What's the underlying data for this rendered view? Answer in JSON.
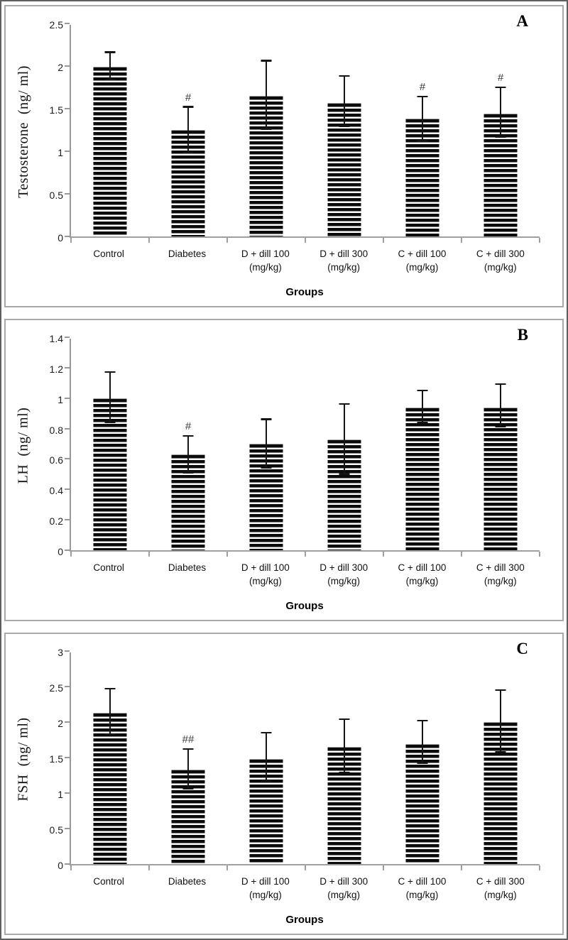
{
  "figure": {
    "panel_letters": [
      "A",
      "B",
      "C"
    ]
  },
  "chart_data": [
    {
      "type": "bar",
      "panel_label": "A",
      "ylabel": "Testosterone  (ng/ ml)",
      "xlabel": "Groups",
      "ylim": [
        0,
        2.5
      ],
      "yticks": [
        0,
        0.5,
        1,
        1.5,
        2,
        2.5
      ],
      "ytick_labels": [
        "0",
        "0.5",
        "1",
        "1.5",
        "2",
        "2.5"
      ],
      "grid": false,
      "legend": false,
      "bar_style": "horizontal-stripes",
      "bar_color": "#000000",
      "axis_color": "#9a9a9a",
      "categories": [
        [
          "Control"
        ],
        [
          "Diabetes"
        ],
        [
          "D + dill 100",
          "(mg/kg)"
        ],
        [
          "D + dill 300",
          "(mg/kg)"
        ],
        [
          "C + dill 100",
          "(mg/kg)"
        ],
        [
          "C + dill 300",
          "(mg/kg)"
        ]
      ],
      "values": [
        1.99,
        1.25,
        1.65,
        1.57,
        1.38,
        1.44
      ],
      "error_high": [
        2.16,
        1.52,
        2.06,
        1.88,
        1.64,
        1.75
      ],
      "error_low": [
        1.84,
        0.98,
        1.26,
        1.29,
        1.12,
        1.17
      ],
      "annotations": [
        "",
        "#",
        "",
        "",
        "#",
        "#"
      ]
    },
    {
      "type": "bar",
      "panel_label": "B",
      "ylabel": "LH  (ng/ ml)",
      "xlabel": "Groups",
      "ylim": [
        0,
        1.4
      ],
      "yticks": [
        0,
        0.2,
        0.4,
        0.6,
        0.8,
        1,
        1.2,
        1.4
      ],
      "ytick_labels": [
        "0",
        "0.2",
        "0.4",
        "0.6",
        "0.8",
        "1",
        "1.2",
        "1.4"
      ],
      "grid": false,
      "legend": false,
      "bar_style": "horizontal-stripes",
      "bar_color": "#000000",
      "axis_color": "#9a9a9a",
      "categories": [
        [
          "Control"
        ],
        [
          "Diabetes"
        ],
        [
          "D + dill 100",
          "(mg/kg)"
        ],
        [
          "D + dill 300",
          "(mg/kg)"
        ],
        [
          "C + dill 100",
          "(mg/kg)"
        ],
        [
          "C + dill 300",
          "(mg/kg)"
        ]
      ],
      "values": [
        1.0,
        0.63,
        0.7,
        0.73,
        0.94,
        0.94
      ],
      "error_high": [
        1.17,
        0.75,
        0.86,
        0.96,
        1.05,
        1.09
      ],
      "error_low": [
        0.84,
        0.51,
        0.54,
        0.5,
        0.84,
        0.81
      ],
      "annotations": [
        "",
        "#",
        "",
        "",
        "",
        ""
      ]
    },
    {
      "type": "bar",
      "panel_label": "C",
      "ylabel": "FSH  (ng/ ml)",
      "xlabel": "Groups",
      "ylim": [
        0,
        3
      ],
      "yticks": [
        0,
        0.5,
        1,
        1.5,
        2,
        2.5,
        3
      ],
      "ytick_labels": [
        "0",
        "0.5",
        "1",
        "1.5",
        "2",
        "2.5",
        "3"
      ],
      "grid": false,
      "legend": false,
      "bar_style": "horizontal-stripes",
      "bar_color": "#000000",
      "axis_color": "#9a9a9a",
      "categories": [
        [
          "Control"
        ],
        [
          "Diabetes"
        ],
        [
          "D + dill 100",
          "(mg/kg)"
        ],
        [
          "D + dill 300",
          "(mg/kg)"
        ],
        [
          "C + dill 100",
          "(mg/kg)"
        ],
        [
          "C + dill 300",
          "(mg/kg)"
        ]
      ],
      "values": [
        2.13,
        1.33,
        1.48,
        1.65,
        1.69,
        2.0
      ],
      "error_high": [
        2.47,
        1.62,
        1.85,
        2.04,
        2.02,
        2.45
      ],
      "error_low": [
        1.83,
        1.06,
        1.17,
        1.29,
        1.42,
        1.58
      ],
      "annotations": [
        "",
        "##",
        "",
        "",
        "",
        ""
      ]
    }
  ]
}
